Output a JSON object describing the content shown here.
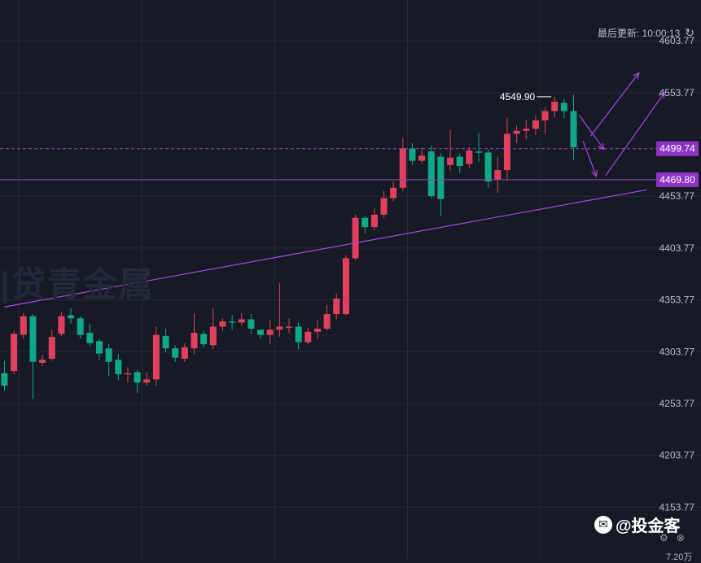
{
  "header": {
    "update_label": "最后更新: 10:00:13",
    "refresh_icon": "refresh-icon"
  },
  "watermark": "|贷青金属",
  "brand": {
    "text": "@投金客",
    "icon": "brand-logo-icon"
  },
  "volume_label": "7.20万",
  "colors": {
    "background": "#161a25",
    "up": "#e0405e",
    "down": "#0fa888",
    "price_line": "#9a40c8",
    "label_bg": "#8e33c4",
    "trendline": "#a845ea",
    "grid": "#252a38",
    "axis_text": "#b7bcc8"
  },
  "chart_data": {
    "type": "candlestick",
    "y_ticks": [
      "4603.77",
      "4553.77",
      "4453.77",
      "4403.77",
      "4353.77",
      "4303.77",
      "4253.77",
      "4203.77",
      "4153.77"
    ],
    "ylim": [
      4103.77,
      4633.77
    ],
    "price_labels": [
      {
        "value": 4499.74,
        "text": "4499.74"
      },
      {
        "value": 4469.8,
        "text": "4469.80"
      }
    ],
    "high_marker": {
      "index": 58,
      "value": 4549.9,
      "text": "4549.90"
    },
    "candles": [
      [
        4283,
        4271,
        4295,
        4266
      ],
      [
        4285,
        4321,
        4324,
        4282
      ],
      [
        4320,
        4338,
        4341,
        4316
      ],
      [
        4338,
        4294,
        4340,
        4258
      ],
      [
        4293,
        4296,
        4301,
        4290
      ],
      [
        4297,
        4318,
        4325,
        4295
      ],
      [
        4321,
        4338,
        4342,
        4319
      ],
      [
        4339,
        4336,
        4346,
        4331
      ],
      [
        4336,
        4320,
        4338,
        4316
      ],
      [
        4322,
        4312,
        4331,
        4309
      ],
      [
        4314,
        4302,
        4316,
        4296
      ],
      [
        4307,
        4294,
        4311,
        4280
      ],
      [
        4296,
        4282,
        4302,
        4276
      ],
      [
        4282,
        4283,
        4289,
        4274
      ],
      [
        4284,
        4274,
        4286,
        4264
      ],
      [
        4274,
        4277,
        4284,
        4271
      ],
      [
        4277,
        4320,
        4328,
        4271
      ],
      [
        4319,
        4307,
        4326,
        4303
      ],
      [
        4307,
        4298,
        4310,
        4294
      ],
      [
        4297,
        4308,
        4312,
        4294
      ],
      [
        4307,
        4322,
        4341,
        4301
      ],
      [
        4321,
        4311,
        4324,
        4308
      ],
      [
        4310,
        4328,
        4346,
        4306
      ],
      [
        4328,
        4333,
        4336,
        4324
      ],
      [
        4333,
        4332,
        4339,
        4325
      ],
      [
        4332,
        4335,
        4341,
        4329
      ],
      [
        4335,
        4326,
        4340,
        4321
      ],
      [
        4325,
        4320,
        4324,
        4316
      ],
      [
        4320,
        4325,
        4334,
        4311
      ],
      [
        4325,
        4328,
        4370,
        4318
      ],
      [
        4327,
        4328,
        4336,
        4321
      ],
      [
        4328,
        4313,
        4332,
        4306
      ],
      [
        4313,
        4323,
        4327,
        4311
      ],
      [
        4323,
        4326,
        4334,
        4316
      ],
      [
        4326,
        4340,
        4349,
        4324
      ],
      [
        4340,
        4355,
        4360,
        4335
      ],
      [
        4340,
        4394,
        4397,
        4339
      ],
      [
        4394,
        4433,
        4436,
        4392
      ],
      [
        4433,
        4424,
        4435,
        4418
      ],
      [
        4424,
        4436,
        4442,
        4421
      ],
      [
        4436,
        4452,
        4459,
        4433
      ],
      [
        4452,
        4462,
        4468,
        4449
      ],
      [
        4462,
        4500,
        4510,
        4459
      ],
      [
        4500,
        4488,
        4505,
        4484
      ],
      [
        4488,
        4493,
        4501,
        4485
      ],
      [
        4497,
        4454,
        4503,
        4452
      ],
      [
        4492,
        4451,
        4495,
        4435
      ],
      [
        4484,
        4491,
        4518,
        4478
      ],
      [
        4492,
        4483,
        4495,
        4476
      ],
      [
        4485,
        4498,
        4501,
        4481
      ],
      [
        4497,
        4496,
        4515,
        4487
      ],
      [
        4496,
        4468,
        4499,
        4462
      ],
      [
        4470,
        4479,
        4492,
        4457
      ],
      [
        4479,
        4514,
        4530,
        4468
      ],
      [
        4514,
        4517,
        4522,
        4505
      ],
      [
        4517,
        4519,
        4527,
        4509
      ],
      [
        4519,
        4527,
        4532,
        4513
      ],
      [
        4527,
        4536,
        4540,
        4514
      ],
      [
        4536,
        4545,
        4550,
        4530
      ],
      [
        4544,
        4536,
        4548,
        4529
      ],
      [
        4536,
        4501,
        4552,
        4489
      ]
    ],
    "trendline": {
      "from": [
        0,
        4347
      ],
      "to": [
        67.7,
        4460
      ]
    },
    "arrows": [
      [
        [
          60.6,
          4532
        ],
        [
          63.2,
          4499
        ]
      ],
      [
        [
          61.0,
          4507
        ],
        [
          62.4,
          4473
        ]
      ],
      [
        [
          61.8,
          4512
        ],
        [
          66.9,
          4573
        ]
      ],
      [
        [
          63.4,
          4474
        ],
        [
          69.6,
          4554
        ]
      ]
    ]
  }
}
